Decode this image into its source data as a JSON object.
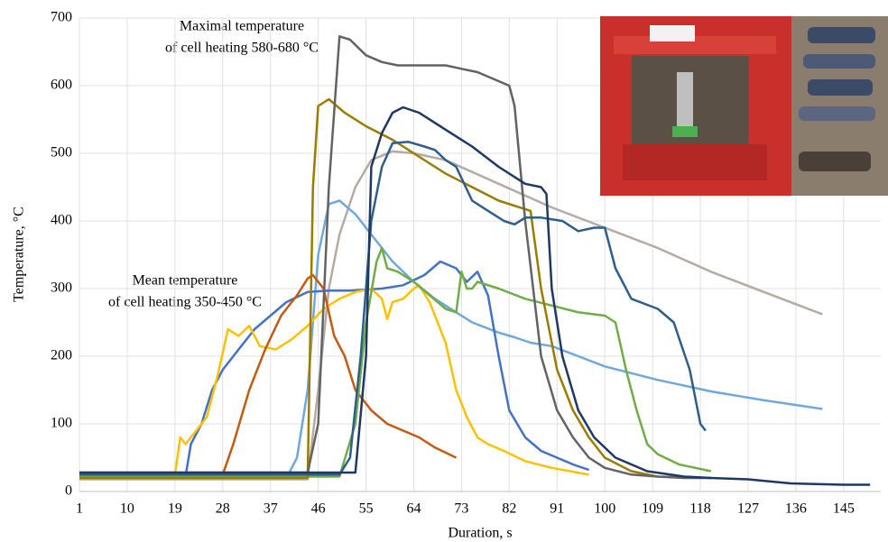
{
  "chart_data": {
    "type": "line",
    "xlabel": "Duration, s",
    "ylabel": "Temperature, °C",
    "annotations": [
      [
        "Maximal temperature",
        "of cell heating 580-680 °C"
      ],
      [
        "Mean temperature",
        "of cell heating 350-450 °C"
      ]
    ],
    "xlim": [
      1,
      152
    ],
    "ylim": [
      0,
      700
    ],
    "xticks": [
      1,
      10,
      19,
      28,
      37,
      46,
      55,
      64,
      73,
      82,
      91,
      100,
      109,
      118,
      127,
      136,
      145
    ],
    "yticks": [
      0,
      100,
      200,
      300,
      400,
      500,
      600,
      700
    ],
    "grid": true,
    "series": [
      {
        "color": "#b5aba5",
        "x": [
          1,
          44,
          46,
          48,
          50,
          53,
          56,
          60,
          64,
          70,
          80,
          90,
          100,
          110,
          120,
          130,
          141
        ],
        "values": [
          18,
          18,
          150,
          300,
          380,
          450,
          490,
          503,
          500,
          490,
          455,
          420,
          390,
          360,
          325,
          295,
          262
        ]
      },
      {
        "color": "#6fa8dc",
        "x": [
          1,
          40,
          42,
          44,
          46,
          48,
          50,
          53,
          56,
          60,
          64,
          68,
          72,
          75,
          80,
          83,
          86,
          90,
          95,
          100,
          110,
          120,
          130,
          141
        ],
        "values": [
          20,
          20,
          50,
          150,
          350,
          425,
          430,
          410,
          380,
          340,
          310,
          285,
          265,
          250,
          235,
          228,
          220,
          215,
          200,
          185,
          165,
          148,
          135,
          122
        ]
      },
      {
        "color": "#4472c4",
        "x": [
          1,
          21,
          22,
          24,
          26,
          28,
          31,
          34,
          37,
          40,
          44,
          48,
          52,
          58,
          62,
          66,
          69,
          72,
          74,
          76,
          78,
          80,
          82,
          85,
          88,
          91,
          94,
          97
        ],
        "values": [
          22,
          22,
          70,
          100,
          150,
          180,
          210,
          240,
          260,
          280,
          295,
          297,
          297,
          300,
          305,
          320,
          340,
          330,
          310,
          325,
          290,
          200,
          120,
          80,
          60,
          50,
          40,
          32
        ]
      },
      {
        "color": "#ffc000",
        "x": [
          1,
          19,
          20,
          21,
          23,
          25,
          27,
          29,
          31,
          33,
          35,
          38,
          41,
          44,
          47,
          50,
          53,
          56,
          58,
          59,
          60,
          62,
          64,
          65,
          67,
          70,
          72,
          74,
          76,
          78,
          81,
          85,
          90,
          97
        ],
        "values": [
          25,
          25,
          80,
          70,
          90,
          110,
          170,
          240,
          230,
          245,
          215,
          210,
          225,
          245,
          270,
          285,
          295,
          300,
          285,
          255,
          280,
          285,
          300,
          305,
          280,
          220,
          150,
          110,
          80,
          70,
          60,
          45,
          35,
          25
        ]
      },
      {
        "color": "#c55a11",
        "x": [
          1,
          28,
          30,
          33,
          36,
          39,
          42,
          44,
          45,
          47,
          49,
          51,
          53,
          56,
          59,
          62,
          65,
          68,
          72
        ],
        "values": [
          25,
          25,
          70,
          150,
          210,
          260,
          290,
          315,
          320,
          300,
          230,
          200,
          150,
          120,
          100,
          90,
          80,
          65,
          50
        ]
      },
      {
        "color": "#70ad47",
        "x": [
          1,
          50,
          53,
          55,
          57,
          58,
          59,
          61,
          64,
          67,
          70,
          72,
          73,
          74,
          75,
          76,
          80,
          85,
          90,
          95,
          100,
          102,
          104,
          106,
          108,
          110,
          114,
          120
        ],
        "values": [
          22,
          22,
          100,
          250,
          340,
          360,
          330,
          325,
          310,
          290,
          270,
          265,
          325,
          300,
          300,
          310,
          300,
          285,
          275,
          265,
          260,
          250,
          180,
          120,
          70,
          55,
          40,
          30
        ]
      },
      {
        "color": "#9b7c00",
        "x": [
          1,
          44,
          45,
          46,
          48,
          51,
          55,
          60,
          64,
          70,
          75,
          80,
          86,
          88,
          91,
          94,
          97,
          100,
          105,
          110,
          120
        ],
        "values": [
          20,
          20,
          450,
          570,
          580,
          560,
          540,
          520,
          500,
          470,
          450,
          430,
          415,
          300,
          180,
          120,
          80,
          50,
          30,
          22,
          20
        ]
      },
      {
        "color": "#636363",
        "x": [
          1,
          44,
          46,
          48,
          50,
          52,
          55,
          58,
          61,
          64,
          67,
          70,
          73,
          76,
          79,
          82,
          83,
          85,
          88,
          91,
          94,
          97,
          100,
          105,
          110,
          115,
          120
        ],
        "values": [
          28,
          28,
          100,
          450,
          673,
          668,
          645,
          635,
          630,
          630,
          630,
          630,
          625,
          620,
          610,
          600,
          570,
          400,
          200,
          120,
          80,
          50,
          35,
          25,
          22,
          20,
          20
        ]
      },
      {
        "color": "#2e5f8a",
        "x": [
          1,
          50,
          52,
          54,
          56,
          58,
          60,
          63,
          66,
          68,
          70,
          72,
          75,
          78,
          81,
          83,
          85,
          88,
          92,
          95,
          98,
          100,
          102,
          105,
          110,
          113,
          116,
          118,
          119
        ],
        "values": [
          25,
          25,
          50,
          200,
          400,
          480,
          515,
          517,
          510,
          505,
          490,
          480,
          430,
          415,
          400,
          395,
          405,
          405,
          400,
          385,
          390,
          390,
          330,
          285,
          270,
          250,
          180,
          100,
          90
        ]
      },
      {
        "color": "#1f3864",
        "x": [
          1,
          53,
          55,
          56,
          58,
          60,
          62,
          65,
          70,
          75,
          80,
          85,
          88,
          89,
          90,
          92,
          95,
          98,
          102,
          108,
          115,
          120,
          127,
          135,
          145,
          150
        ],
        "values": [
          28,
          28,
          200,
          480,
          530,
          560,
          568,
          560,
          535,
          510,
          480,
          455,
          450,
          440,
          300,
          200,
          120,
          80,
          50,
          30,
          22,
          20,
          18,
          12,
          10,
          10
        ]
      }
    ]
  }
}
